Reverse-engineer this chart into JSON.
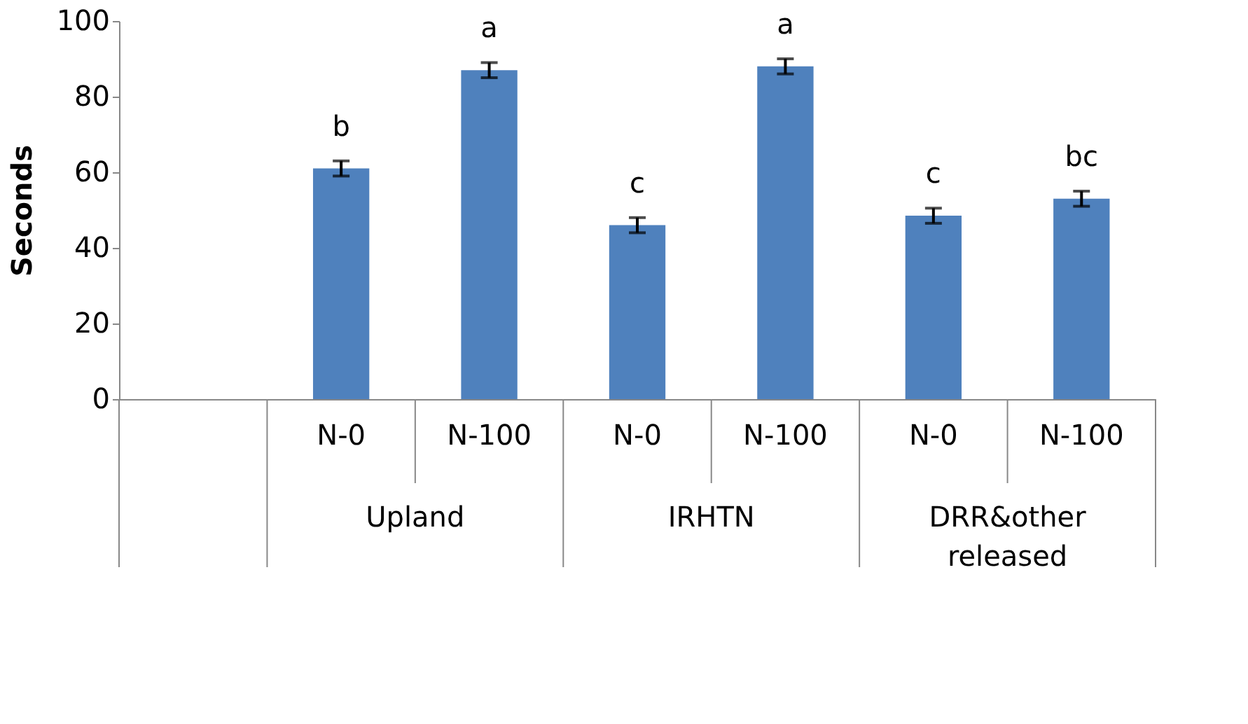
{
  "chart_data": {
    "type": "bar",
    "ylabel": "Seconds",
    "categories": [
      null,
      "N-0",
      "N-100",
      "N-0",
      "N-100",
      "N-0",
      "N-100"
    ],
    "values": [
      null,
      61,
      87,
      46,
      88,
      48.5,
      53
    ],
    "errors": [
      null,
      2,
      2,
      2,
      2,
      2,
      2
    ],
    "value_labels": [
      null,
      "b",
      "a",
      "c",
      "a",
      "c",
      "bc"
    ],
    "annotations": [
      "Upland",
      "IRHTN",
      "DRR&other released"
    ],
    "color": "#4f81bd",
    "ylim": [
      0,
      100
    ],
    "yticks": [
      0,
      20,
      40,
      60,
      80,
      100
    ],
    "grid": false
  }
}
